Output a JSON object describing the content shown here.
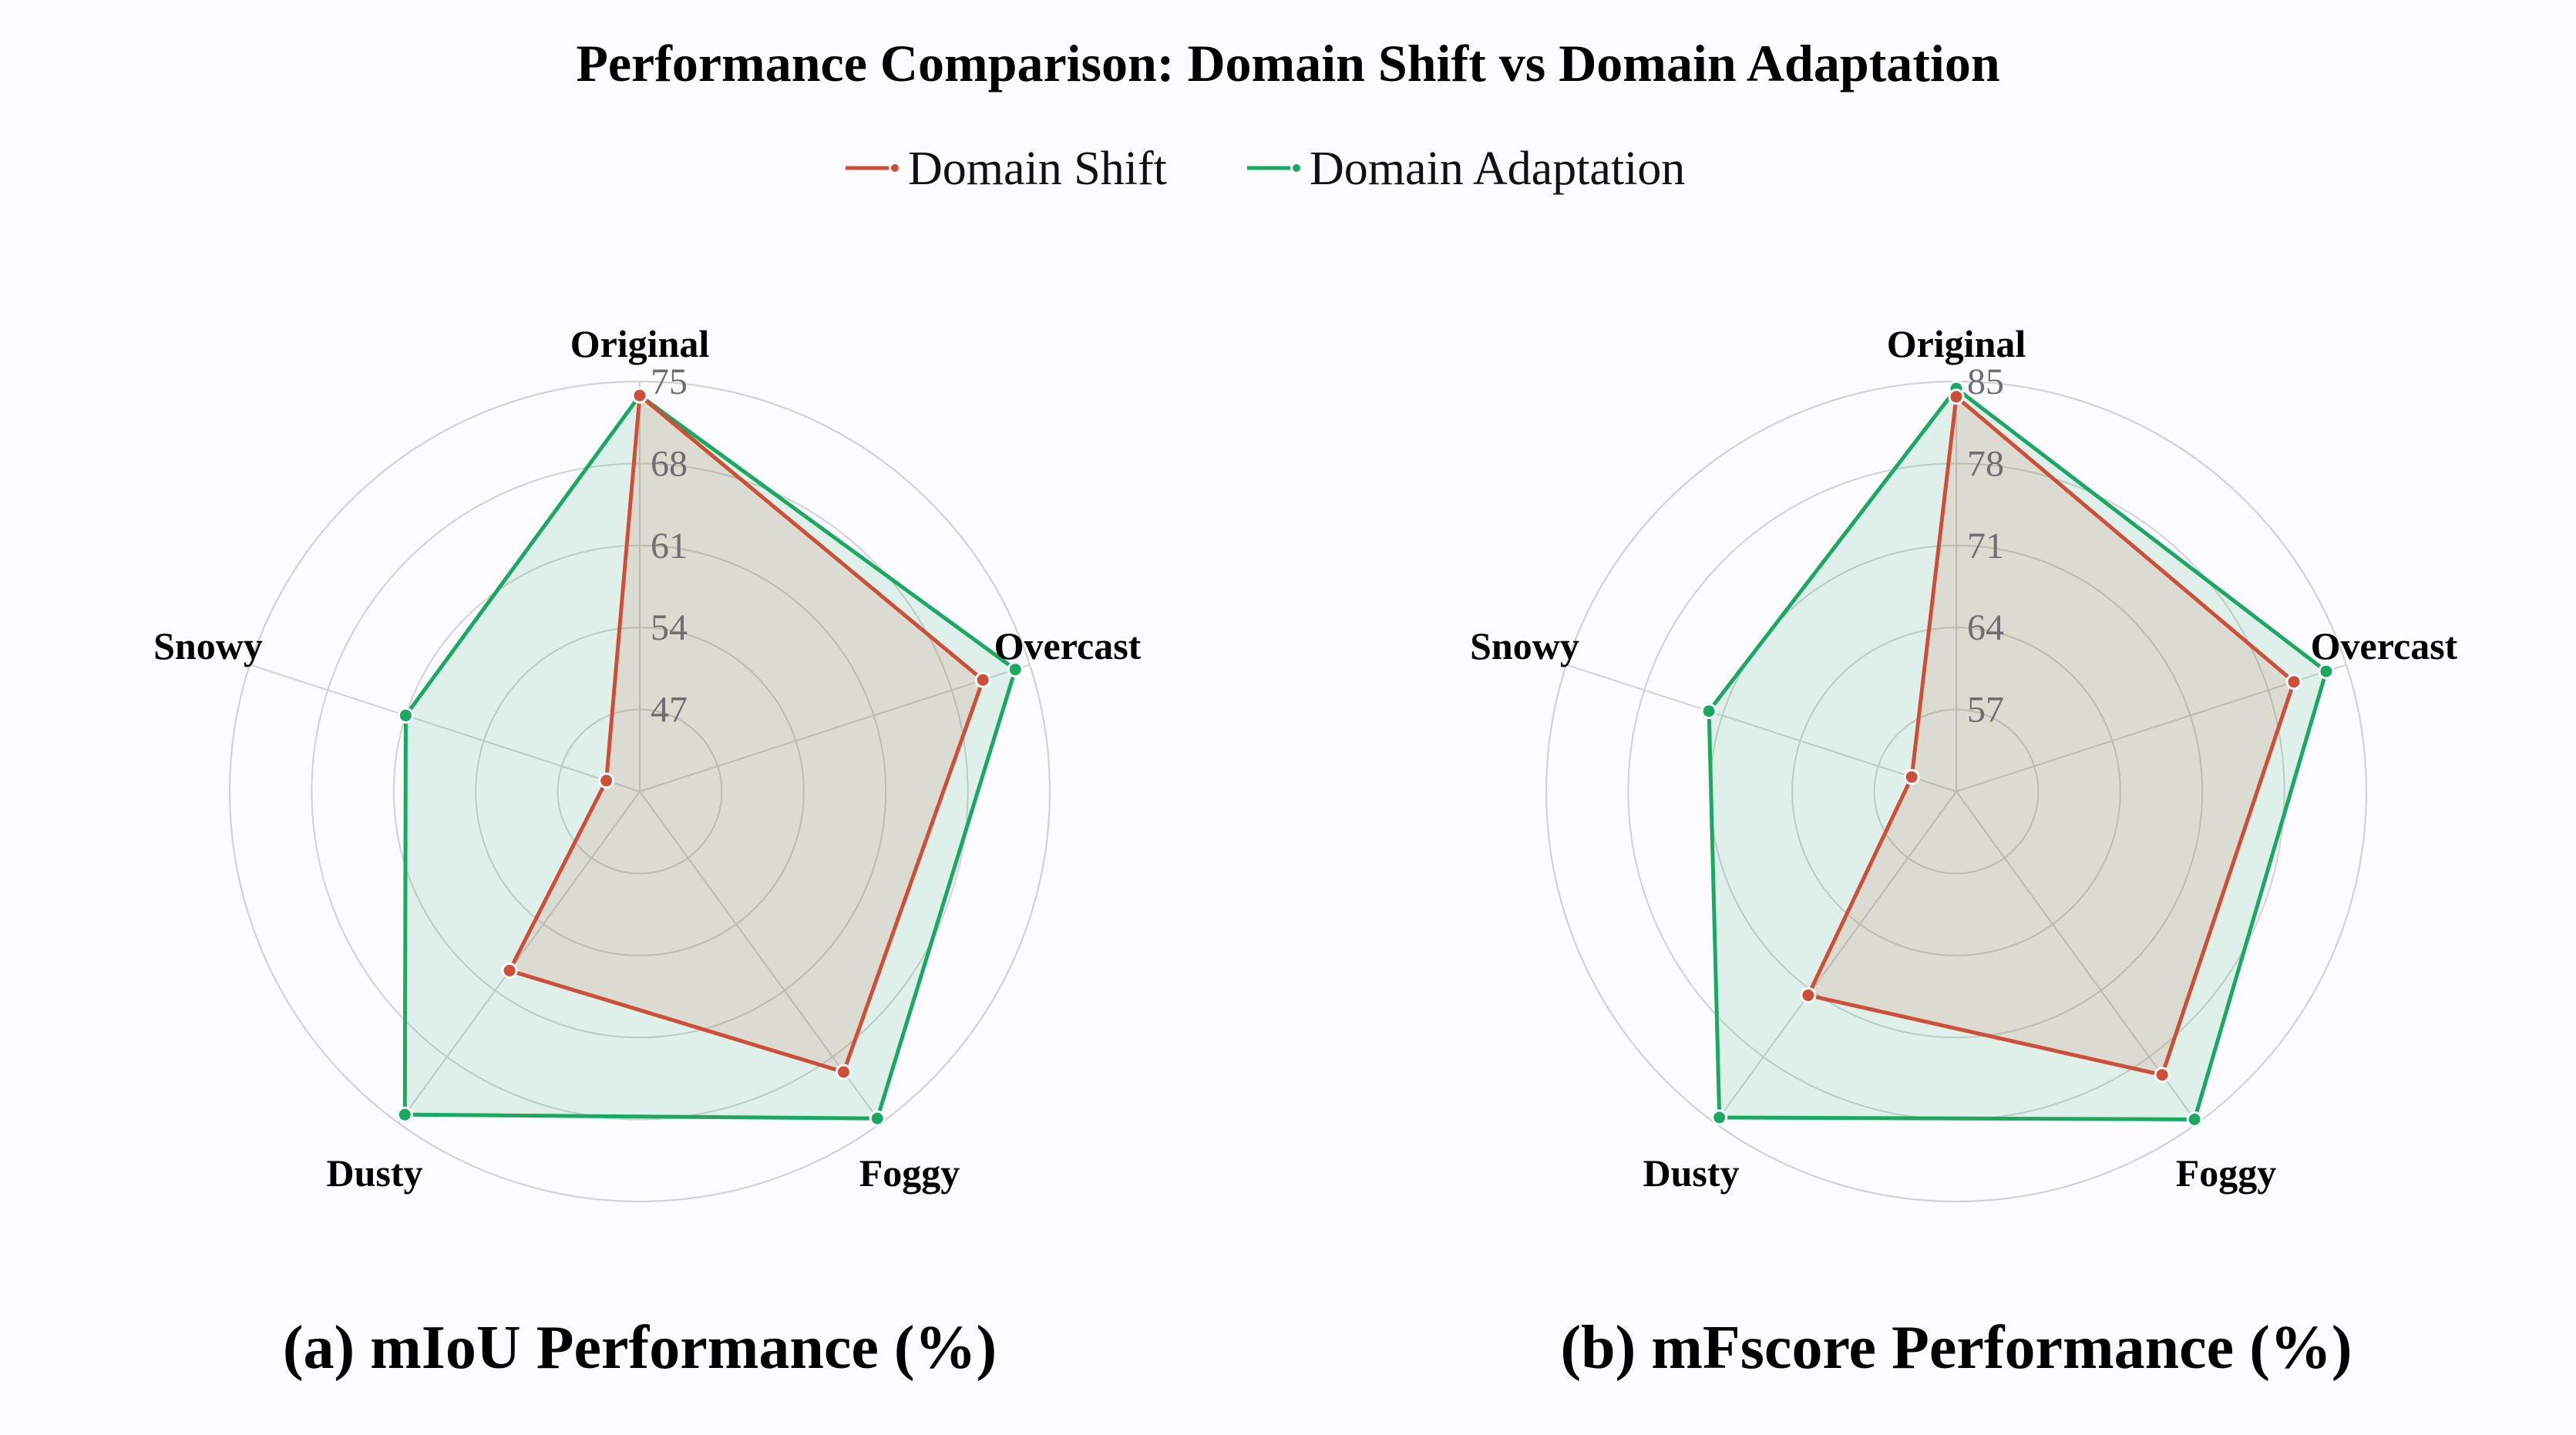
{
  "title": "Performance Comparison: Domain Shift vs Domain Adaptation",
  "legend": [
    {
      "label": "Domain Shift",
      "color": "#cd4f39"
    },
    {
      "label": "Domain Adaptation",
      "color": "#1aa862"
    }
  ],
  "chart_data": [
    {
      "type": "radar",
      "title": "(a) mIoU Performance (%)",
      "categories": [
        "Original",
        "Overcast",
        "Foggy",
        "Dusty",
        "Snowy"
      ],
      "ticks": [
        "47",
        "54",
        "61",
        "68",
        "75"
      ],
      "range": [
        40,
        75
      ],
      "series": [
        {
          "name": "Domain Shift",
          "color": "#cd4f39",
          "values": [
            73.8,
            70.8,
            69.6,
            58.9,
            43.0
          ]
        },
        {
          "name": "Domain Adaptation",
          "color": "#1aa862",
          "values": [
            73.8,
            73.7,
            74.5,
            74.1,
            61.0
          ]
        }
      ],
      "grid": true
    },
    {
      "type": "radar",
      "title": "(b) mFscore Performance (%)",
      "categories": [
        "Original",
        "Overcast",
        "Foggy",
        "Dusty",
        "Snowy"
      ],
      "ticks": [
        "57",
        "64",
        "71",
        "78",
        "85"
      ],
      "range": [
        50,
        85
      ],
      "series": [
        {
          "name": "Domain Shift",
          "color": "#cd4f39",
          "values": [
            83.7,
            80.3,
            79.9,
            71.5,
            54.0
          ]
        },
        {
          "name": "Domain Adaptation",
          "color": "#1aa862",
          "values": [
            84.4,
            83.2,
            84.6,
            84.4,
            72.2
          ]
        }
      ],
      "grid": true
    }
  ]
}
